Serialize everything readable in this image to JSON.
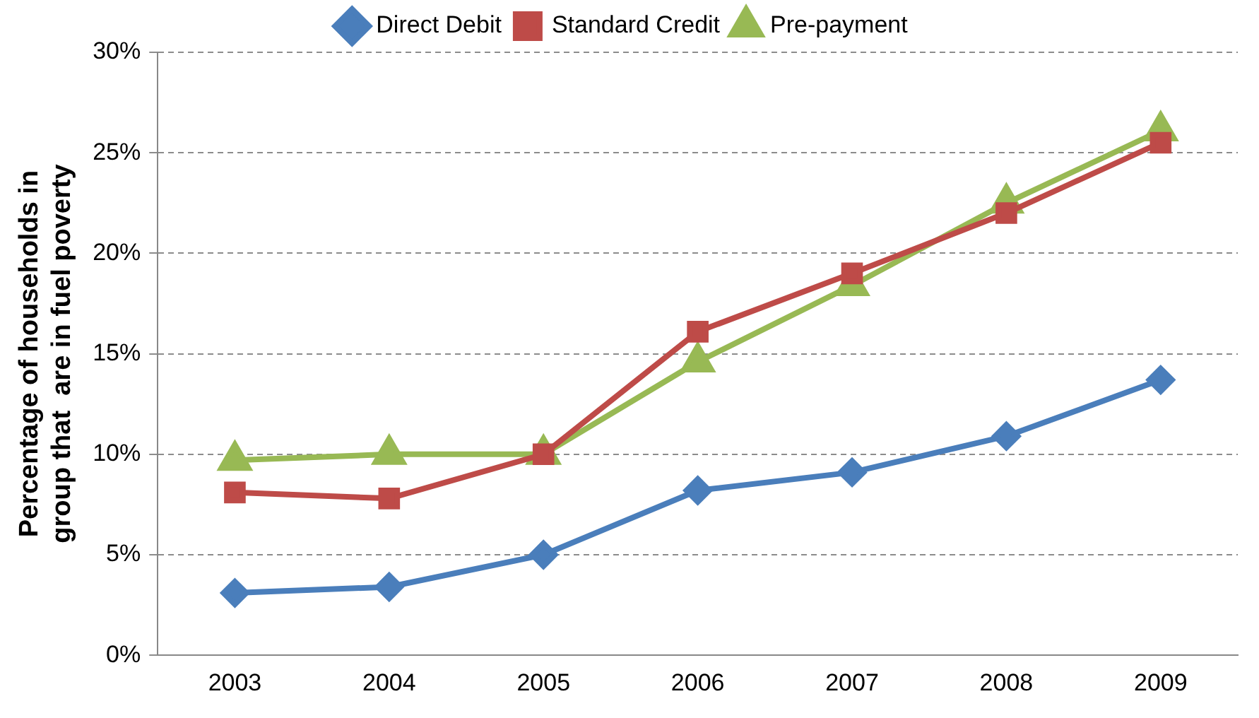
{
  "chart_data": {
    "type": "line",
    "ylabel": "Percentage of households in\ngroup that  are in fuel poverty",
    "categories": [
      "2003",
      "2004",
      "2005",
      "2006",
      "2007",
      "2008",
      "2009"
    ],
    "series": [
      {
        "name": "Direct Debit",
        "color": "#4a7ebb",
        "marker": "diamond",
        "values": [
          3.1,
          3.4,
          5.0,
          8.2,
          9.1,
          10.9,
          13.7
        ]
      },
      {
        "name": "Standard Credit",
        "color": "#be4b48",
        "marker": "square",
        "values": [
          8.1,
          7.8,
          10.0,
          16.1,
          19.0,
          22.0,
          25.5
        ]
      },
      {
        "name": "Pre-payment",
        "color": "#98b954",
        "marker": "triangle",
        "values": [
          9.7,
          10.0,
          10.0,
          14.6,
          18.4,
          22.5,
          26.1
        ]
      }
    ],
    "ylim": [
      0,
      30
    ],
    "yticks": [
      {
        "value": 0,
        "label": "0%"
      },
      {
        "value": 5,
        "label": "5%"
      },
      {
        "value": 10,
        "label": "10%"
      },
      {
        "value": 15,
        "label": "15%"
      },
      {
        "value": 20,
        "label": "20%"
      },
      {
        "value": 25,
        "label": "25%"
      },
      {
        "value": 30,
        "label": "30%"
      }
    ],
    "grid": "y",
    "legend": "top",
    "line_style": "solid"
  }
}
